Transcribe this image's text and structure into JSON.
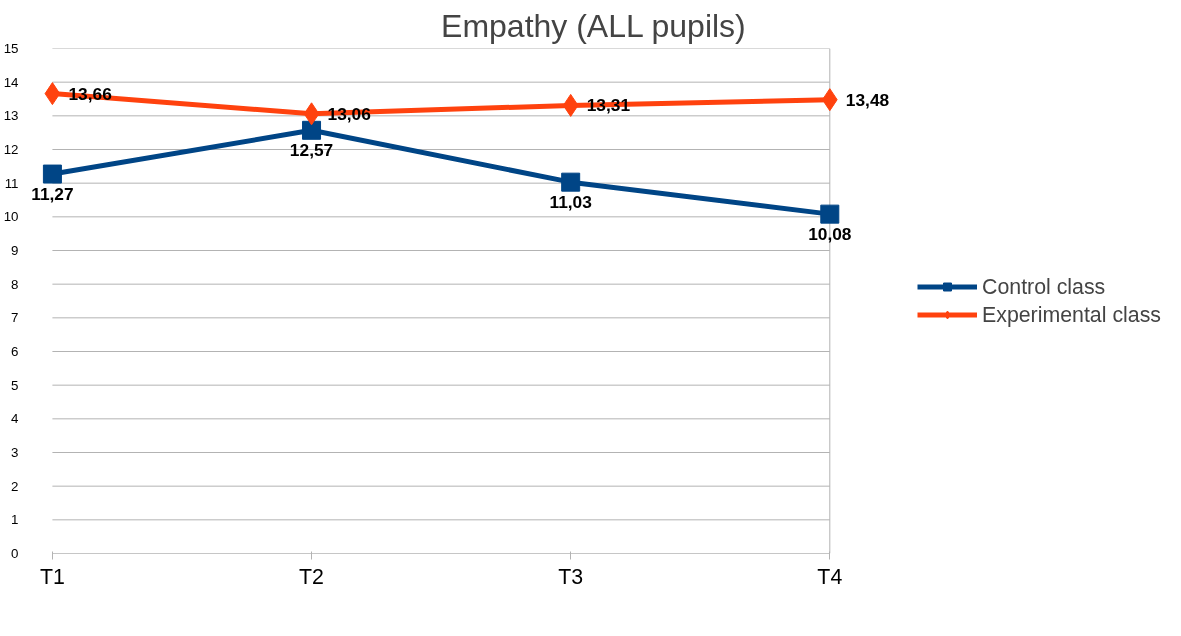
{
  "chart_data": {
    "type": "line",
    "title": "Empathy (ALL pupils)",
    "categories": [
      "T1",
      "T2",
      "T3",
      "T4"
    ],
    "series": [
      {
        "name": "Control class",
        "color": "#004586",
        "marker": "square",
        "values": [
          11.27,
          12.57,
          11.03,
          10.08
        ],
        "value_labels": [
          "11,27",
          "12,57",
          "11,03",
          "10,08"
        ]
      },
      {
        "name": "Experimental class",
        "color": "#ff420e",
        "marker": "diamond",
        "values": [
          13.66,
          13.06,
          13.31,
          13.48
        ],
        "value_labels": [
          "13,66",
          "13,06",
          "13,31",
          "13,48"
        ]
      }
    ],
    "ylim": [
      0,
      15
    ],
    "yticks": [
      0,
      1,
      2,
      3,
      4,
      5,
      6,
      7,
      8,
      9,
      10,
      11,
      12,
      13,
      14,
      15
    ],
    "grid": "y",
    "legend": "right"
  }
}
